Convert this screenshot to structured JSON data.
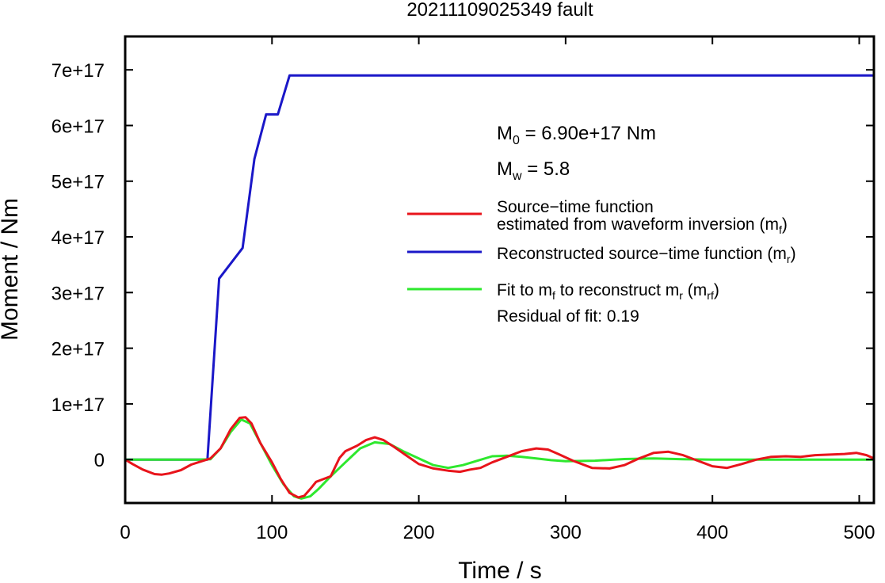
{
  "chart_data": {
    "type": "line",
    "title": "20211109025349 fault",
    "xlabel": "Time / s",
    "ylabel": "Moment / Nm",
    "xlim": [
      0,
      510
    ],
    "ylim": [
      -7.8e+16,
      7.6e+17
    ],
    "x_ticks": [
      0,
      100,
      200,
      300,
      400,
      500
    ],
    "x_tick_labels": [
      "0",
      "100",
      "200",
      "300",
      "400",
      "500"
    ],
    "y_ticks": [
      0,
      1e+17,
      2e+17,
      3e+17,
      4e+17,
      5e+17,
      6e+17,
      7e+17
    ],
    "y_tick_labels": [
      "0",
      "1e+17",
      "2e+17",
      "3e+17",
      "4e+17",
      "5e+17",
      "6e+17",
      "7e+17"
    ],
    "grid": false,
    "legend_position": "right",
    "annotations": {
      "m0_main": "M",
      "m0_sub": "0",
      "m0_rest": " = 6.90e+17 Nm",
      "mw_main": "M",
      "mw_sub": "w",
      "mw_rest": " = 5.8",
      "residual": "Residual of fit: 0.19"
    },
    "legend": [
      {
        "color": "#e8141b",
        "line1": "Source−time function",
        "line2_main": "estimated from waveform inversion (m",
        "line2_sub": "f",
        "line2_end": ")"
      },
      {
        "color": "#1a17c8",
        "line1_main": "Reconstructed source−time function (m",
        "line1_sub": "r",
        "line1_end": ")"
      },
      {
        "color": "#2ee82e",
        "line1_a": "Fit to m",
        "line1_a_sub": "f",
        "line1_b": " to reconstruct m",
        "line1_b_sub": "r",
        "line1_c": " (m",
        "line1_c_sub": "rf",
        "line1_d": ")"
      }
    ],
    "series": [
      {
        "color": "#1a17c8",
        "x": [
          0,
          56,
          64,
          80,
          88,
          96,
          104,
          112,
          510
        ],
        "y": [
          0,
          0,
          3.25e+17,
          3.8e+17,
          5.4e+17,
          6.2e+17,
          6.2e+17,
          6.9e+17,
          6.9e+17
        ]
      },
      {
        "color": "#2ee82e",
        "x": [
          0,
          50,
          58,
          65,
          72,
          79,
          85,
          92,
          100,
          108,
          115,
          120,
          126,
          132,
          140,
          150,
          160,
          170,
          180,
          190,
          200,
          210,
          220,
          230,
          240,
          250,
          260,
          270,
          280,
          290,
          300,
          320,
          340,
          360,
          380,
          400,
          430,
          460,
          500,
          510
        ],
        "y": [
          0,
          0,
          500000000000000.0,
          2e+16,
          5e+16,
          7.2e+16,
          6.5e+16,
          3e+16,
          -1e+16,
          -4.5e+16,
          -6.6e+16,
          -7e+16,
          -6.6e+16,
          -5.2e+16,
          -3e+16,
          -5000000000000000.0,
          2e+16,
          3.1e+16,
          2.8e+16,
          1.4e+16,
          2000000000000000.0,
          -1e+16,
          -1.5e+16,
          -1e+16,
          -2000000000000000.0,
          6000000000000000.0,
          7000000000000000.0,
          5000000000000000.0,
          2000000000000000.0,
          -1000000000000000.0,
          -3000000000000000.0,
          -2000000000000000.0,
          1000000000000000.0,
          2000000000000000.0,
          500000000000000.0,
          0,
          0,
          0,
          0,
          0
        ]
      },
      {
        "color": "#e8141b",
        "x": [
          0,
          5,
          12,
          20,
          25,
          30,
          38,
          45,
          52,
          58,
          65,
          72,
          78,
          82,
          86,
          92,
          100,
          106,
          112,
          118,
          122,
          127,
          130,
          134,
          140,
          146,
          150,
          158,
          164,
          170,
          176,
          183,
          190,
          200,
          210,
          220,
          228,
          235,
          242,
          250,
          260,
          270,
          280,
          288,
          295,
          305,
          318,
          330,
          340,
          350,
          360,
          370,
          380,
          390,
          400,
          410,
          420,
          430,
          440,
          450,
          460,
          470,
          480,
          490,
          498,
          505,
          510
        ],
        "y": [
          0,
          -8000000000000000.0,
          -1.8e+16,
          -2.6e+16,
          -2.7e+16,
          -2.5e+16,
          -1.9e+16,
          -9000000000000000.0,
          -3000000000000000.0,
          2000000000000000.0,
          2e+16,
          5.5e+16,
          7.5e+16,
          7.6e+16,
          6.5e+16,
          3e+16,
          -5000000000000000.0,
          -3.5e+16,
          -6e+16,
          -6.8e+16,
          -6.5e+16,
          -5e+16,
          -4e+16,
          -3.6e+16,
          -3e+16,
          3000000000000000.0,
          1.5e+16,
          2.5e+16,
          3.5e+16,
          4e+16,
          3.5e+16,
          2.3e+16,
          1e+16,
          -8000000000000000.0,
          -1.6e+16,
          -2e+16,
          -2.2e+16,
          -1.8e+16,
          -1.5e+16,
          -5000000000000000.0,
          5000000000000000.0,
          1.5e+16,
          2e+16,
          1.8e+16,
          1e+16,
          -2000000000000000.0,
          -1.5e+16,
          -1.6e+16,
          -1e+16,
          2000000000000000.0,
          1.2e+16,
          1.4e+16,
          8000000000000000.0,
          -2000000000000000.0,
          -1.2e+16,
          -1.5e+16,
          -8000000000000000.0,
          0,
          5000000000000000.0,
          6000000000000000.0,
          5000000000000000.0,
          8000000000000000.0,
          9000000000000000.0,
          1e+16,
          1.2e+16,
          8000000000000000.0,
          2000000000000000.0
        ]
      }
    ]
  }
}
